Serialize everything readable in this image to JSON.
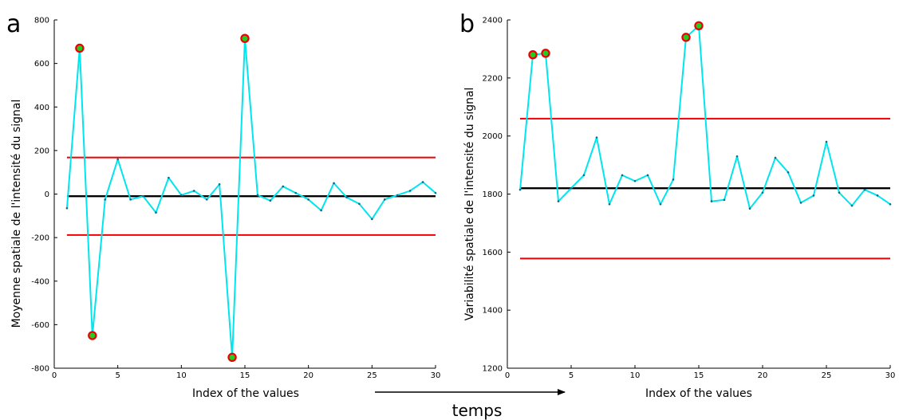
{
  "figure": {
    "time_label": "temps"
  },
  "chart_data": [
    {
      "type": "line",
      "panel_label": "a",
      "xlabel": "Index of the values",
      "ylabel": "Moyenne spatiale de l'intensité du signal",
      "xlim": [
        0,
        30
      ],
      "ylim": [
        -800,
        800
      ],
      "xticks": [
        0,
        5,
        10,
        15,
        20,
        25,
        30
      ],
      "yticks": [
        -800,
        -600,
        -400,
        -200,
        0,
        200,
        400,
        600,
        800
      ],
      "x": [
        1,
        2,
        3,
        4,
        5,
        6,
        7,
        8,
        9,
        10,
        11,
        12,
        13,
        14,
        15,
        16,
        17,
        18,
        19,
        20,
        21,
        22,
        23,
        24,
        25,
        26,
        27,
        28,
        29,
        30
      ],
      "series": [
        {
          "values": [
            -65,
            670,
            -650,
            -25,
            160,
            -25,
            -10,
            -85,
            75,
            -5,
            15,
            -25,
            45,
            -750,
            715,
            -5,
            -30,
            35,
            5,
            -25,
            -75,
            50,
            -15,
            -45,
            -115,
            -25,
            -5,
            15,
            55,
            5
          ],
          "color": "#00e5ee"
        }
      ],
      "mean_line": {
        "value": -10,
        "color": "#000000"
      },
      "control_limits": {
        "upper": 168,
        "lower": -188,
        "color": "#ee0000"
      },
      "outliers": [
        {
          "x": 2,
          "y": 670
        },
        {
          "x": 3,
          "y": -650
        },
        {
          "x": 14,
          "y": -750
        },
        {
          "x": 15,
          "y": 715
        }
      ],
      "outlier_style": {
        "fill": "#22cc22",
        "stroke": "#ee0000"
      }
    },
    {
      "type": "line",
      "panel_label": "b",
      "xlabel": "Index of the values",
      "ylabel": "Variabilité spatiale de l'intensité du signal",
      "xlim": [
        0,
        30
      ],
      "ylim": [
        1200,
        2400
      ],
      "xticks": [
        0,
        5,
        10,
        15,
        20,
        25,
        30
      ],
      "yticks": [
        1200,
        1400,
        1600,
        1800,
        2000,
        2200,
        2400
      ],
      "x": [
        1,
        2,
        3,
        4,
        5,
        6,
        7,
        8,
        9,
        10,
        11,
        12,
        13,
        14,
        15,
        16,
        17,
        18,
        19,
        20,
        21,
        22,
        23,
        24,
        25,
        26,
        27,
        28,
        29,
        30
      ],
      "series": [
        {
          "values": [
            1815,
            2280,
            2285,
            1775,
            1820,
            1865,
            1995,
            1765,
            1865,
            1845,
            1865,
            1765,
            1850,
            2340,
            2380,
            1775,
            1780,
            1930,
            1750,
            1805,
            1925,
            1875,
            1770,
            1795,
            1980,
            1805,
            1760,
            1815,
            1795,
            1765
          ],
          "color": "#00e5ee"
        }
      ],
      "mean_line": {
        "value": 1820,
        "color": "#000000"
      },
      "control_limits": {
        "upper": 2060,
        "lower": 1578,
        "color": "#ee0000"
      },
      "outliers": [
        {
          "x": 2,
          "y": 2280
        },
        {
          "x": 3,
          "y": 2285
        },
        {
          "x": 14,
          "y": 2340
        },
        {
          "x": 15,
          "y": 2380
        }
      ],
      "outlier_style": {
        "fill": "#22cc22",
        "stroke": "#ee0000"
      }
    }
  ]
}
